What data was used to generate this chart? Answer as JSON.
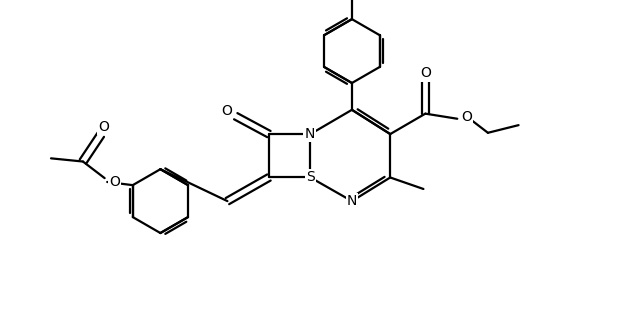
{
  "background_color": "#ffffff",
  "line_color": "#000000",
  "line_width": 1.6,
  "figsize": [
    6.4,
    3.32
  ],
  "dpi": 100,
  "xlim": [
    0,
    10
  ],
  "ylim": [
    0,
    5.2
  ]
}
